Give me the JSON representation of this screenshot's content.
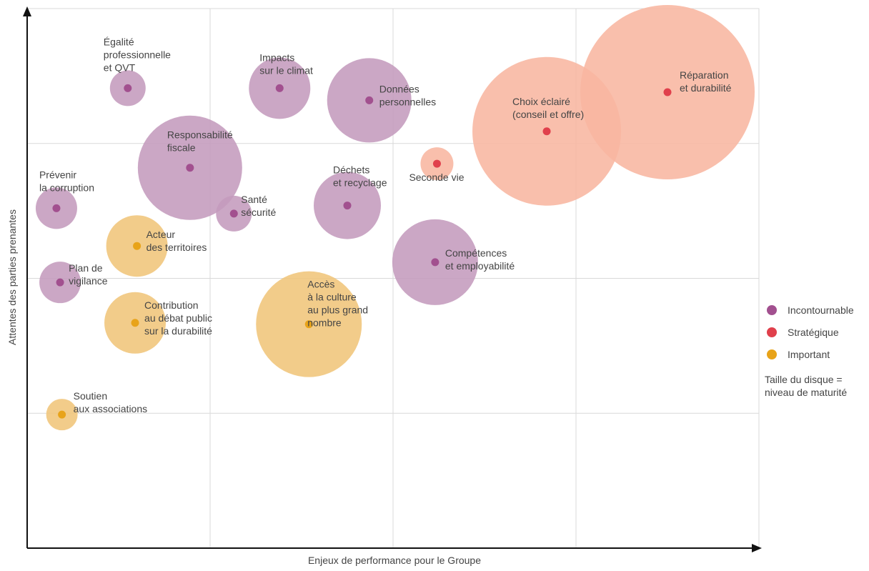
{
  "chart_data": {
    "type": "scatter",
    "title": "",
    "xlabel": "Enjeux de performance pour le Groupe",
    "ylabel": "Attentes des parties prenantes",
    "xlim": [
      0,
      4
    ],
    "ylim": [
      0,
      4
    ],
    "x_grid": [
      1,
      2,
      3
    ],
    "y_grid": [
      1,
      2,
      3
    ],
    "grid": true,
    "axis_ticks_labeled": false,
    "colors": {
      "Incontournable": "#a2508f",
      "Stratégique": "#e0404c",
      "Important": "#e8a319"
    },
    "bubble_fill": {
      "Incontournable": "#c49bbd",
      "Stratégique": "#f8b6a0",
      "Important": "#f0c57a"
    },
    "series": [
      {
        "name": "Incontournable",
        "points": [
          {
            "label": [
              "Égalité",
              "professionnelle",
              "et QVT"
            ],
            "x": 0.55,
            "y": 3.41,
            "size": 25
          },
          {
            "label": [
              "Impacts",
              "sur le climat"
            ],
            "x": 1.38,
            "y": 3.41,
            "size": 43
          },
          {
            "label": [
              "Données",
              "personnelles"
            ],
            "x": 1.87,
            "y": 3.32,
            "size": 59
          },
          {
            "label": [
              "Responsabilité",
              "fiscale"
            ],
            "x": 0.89,
            "y": 2.82,
            "size": 73
          },
          {
            "label": [
              "Prévenir",
              "la corruption"
            ],
            "x": 0.16,
            "y": 2.52,
            "size": 29
          },
          {
            "label": [
              "Santé",
              "sécurité"
            ],
            "x": 1.13,
            "y": 2.48,
            "size": 25
          },
          {
            "label": [
              "Déchets",
              "et recyclage"
            ],
            "x": 1.75,
            "y": 2.54,
            "size": 47
          },
          {
            "label": [
              "Compétences",
              "et employabilité"
            ],
            "x": 2.23,
            "y": 2.12,
            "size": 60
          },
          {
            "label": [
              "Plan de",
              "vigilance"
            ],
            "x": 0.18,
            "y": 1.97,
            "size": 29
          }
        ]
      },
      {
        "name": "Stratégique",
        "points": [
          {
            "label": [
              "Réparation",
              "et durabilité"
            ],
            "x": 3.5,
            "y": 3.38,
            "size": 122
          },
          {
            "label": [
              "Choix éclairé",
              "(conseil et offre)"
            ],
            "x": 2.84,
            "y": 3.09,
            "size": 104
          },
          {
            "label": [
              "Seconde vie"
            ],
            "x": 2.24,
            "y": 2.85,
            "size": 23
          }
        ]
      },
      {
        "name": "Important",
        "points": [
          {
            "label": [
              "Acteur",
              "des territoires"
            ],
            "x": 0.6,
            "y": 2.24,
            "size": 43
          },
          {
            "label": [
              "Contribution",
              "au débat public",
              "sur la durabilité"
            ],
            "x": 0.59,
            "y": 1.67,
            "size": 43
          },
          {
            "label": [
              "Accès",
              "à la culture",
              "au plus grand",
              "nombre"
            ],
            "x": 1.54,
            "y": 1.66,
            "size": 74
          },
          {
            "label": [
              "Soutien",
              "aux associations"
            ],
            "x": 0.19,
            "y": 0.99,
            "size": 22
          }
        ]
      }
    ],
    "legend": {
      "position": "right",
      "note": [
        "Taille du disque =",
        "niveau de maturité"
      ]
    }
  }
}
